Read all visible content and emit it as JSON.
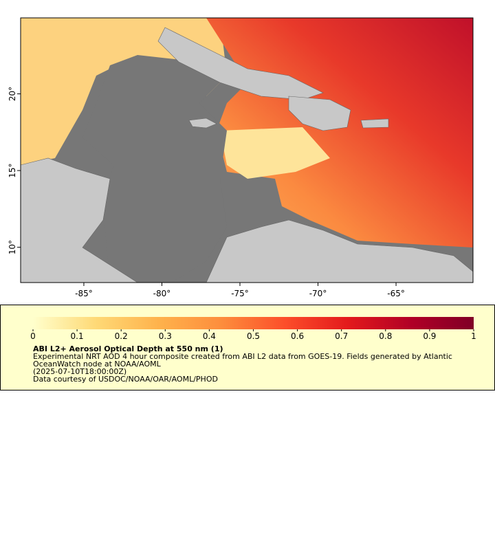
{
  "map": {
    "xlim": [
      -89.05,
      -60.07
    ],
    "ylim": [
      7.7,
      24.95
    ],
    "xticks": [
      {
        "value": -85,
        "label": "-85°"
      },
      {
        "value": -80,
        "label": "-80°"
      },
      {
        "value": -75,
        "label": "-75°"
      },
      {
        "value": -70,
        "label": "-70°"
      },
      {
        "value": -65,
        "label": "-65°"
      }
    ],
    "yticks": [
      {
        "value": 10,
        "label": "10°"
      },
      {
        "value": 15,
        "label": "15°"
      },
      {
        "value": 20,
        "label": "20°"
      }
    ]
  },
  "legend": {
    "colorbar": {
      "range": [
        0,
        1
      ],
      "ticks": [
        0,
        0.1,
        0.2,
        0.3,
        0.4,
        0.5,
        0.6,
        0.7,
        0.8,
        0.9,
        1
      ],
      "colors": [
        "#ffffcc",
        "#fed976",
        "#feb24c",
        "#fd8d3c",
        "#fc4e2a",
        "#e31a1c",
        "#b10026",
        "#800026"
      ]
    },
    "title": "ABI L2+ Aerosol Optical Depth at 550 nm (1)",
    "description": "Experimental NRT AOD 4 hour composite created from ABI L2 data from GOES-19. Fields generated by Atlantic OceanWatch node at NOAA/AOML",
    "time": "(2025-07-10T18:00:00Z)",
    "credit": "Data courtesy of USDOC/NOAA/OAR/AOML/PHOD"
  }
}
